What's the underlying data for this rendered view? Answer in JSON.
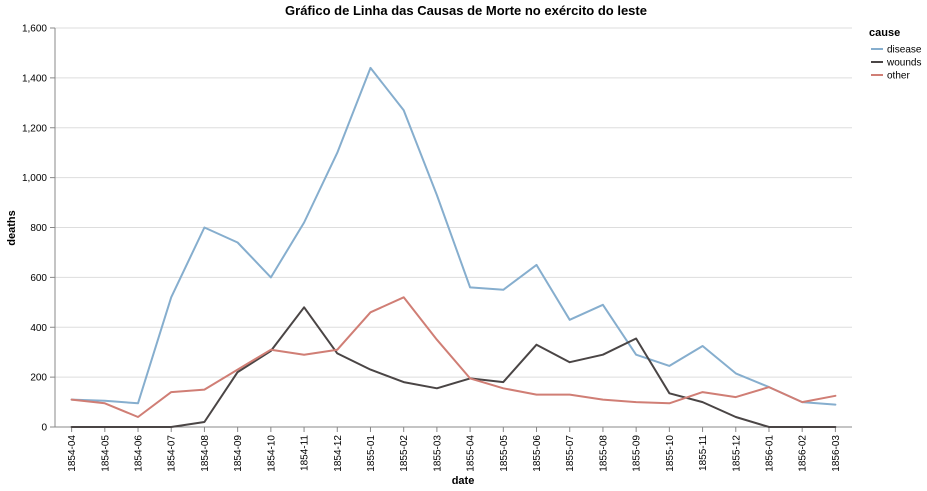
{
  "chart_data": {
    "type": "line",
    "title": "Gráfico de Linha das Causas de Morte no exército do leste",
    "xlabel": "date",
    "ylabel": "deaths",
    "ylim": [
      0,
      1600
    ],
    "y_ticks": [
      0,
      200,
      400,
      600,
      800,
      1000,
      1200,
      1400,
      1600
    ],
    "y_tick_labels": [
      "0",
      "200",
      "400",
      "600",
      "800",
      "1,000",
      "1,200",
      "1,400",
      "1,600"
    ],
    "grid": true,
    "legend": {
      "title": "cause",
      "placement": "top-right"
    },
    "categories": [
      "1854-04",
      "1854-05",
      "1854-06",
      "1854-07",
      "1854-08",
      "1854-09",
      "1854-10",
      "1854-11",
      "1854-12",
      "1855-01",
      "1855-02",
      "1855-03",
      "1855-04",
      "1855-05",
      "1855-06",
      "1855-07",
      "1855-08",
      "1855-09",
      "1855-10",
      "1855-11",
      "1855-12",
      "1856-01",
      "1856-02",
      "1856-03"
    ],
    "series": [
      {
        "name": "disease",
        "color": "#86aece",
        "values": [
          110,
          105,
          95,
          520,
          800,
          740,
          600,
          820,
          1100,
          1440,
          1270,
          930,
          560,
          550,
          650,
          430,
          490,
          290,
          245,
          325,
          215,
          160,
          100,
          90
        ]
      },
      {
        "name": "wounds",
        "color": "#4a4545",
        "values": [
          0,
          0,
          0,
          0,
          20,
          220,
          305,
          480,
          295,
          230,
          180,
          155,
          195,
          180,
          330,
          260,
          290,
          355,
          135,
          100,
          40,
          0,
          0,
          0
        ]
      },
      {
        "name": "other",
        "color": "#d07e75",
        "values": [
          110,
          95,
          40,
          140,
          150,
          230,
          310,
          290,
          310,
          460,
          520,
          350,
          195,
          155,
          130,
          130,
          110,
          100,
          95,
          140,
          120,
          160,
          100,
          125
        ]
      }
    ]
  }
}
